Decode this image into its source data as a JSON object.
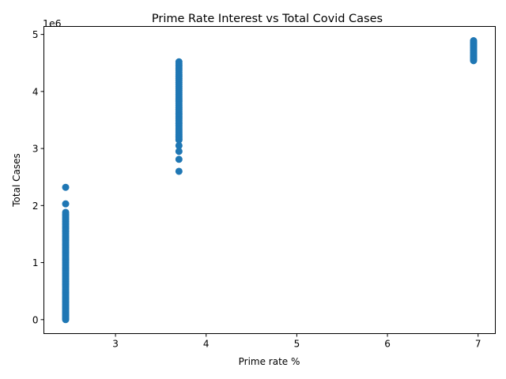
{
  "chart_data": {
    "type": "scatter",
    "title": "Prime Rate Interest vs Total Covid Cases",
    "xlabel": "Prime rate %",
    "ylabel": "Total Cases",
    "y_offset_label": "1e6",
    "xlim": [
      2.21,
      7.19
    ],
    "ylim": [
      -0.245,
      5.14
    ],
    "y_multiplier": 1000000,
    "x_ticks": [
      3,
      4,
      5,
      6,
      7
    ],
    "y_ticks": [
      0,
      1,
      2,
      3,
      4,
      5
    ],
    "grid": false,
    "legend": "none",
    "marker_color": "#1f77b4",
    "series": [
      {
        "groups": [
          {
            "x": 2.45,
            "y_min": 0.0,
            "y_max": 1.88,
            "count": 70,
            "extra_y": [
              2.03,
              2.32
            ]
          },
          {
            "x": 3.7,
            "y_min": 3.15,
            "y_max": 4.52,
            "count": 44,
            "extra_y": [
              2.6,
              2.81,
              2.95,
              3.05
            ]
          },
          {
            "x": 6.95,
            "y_min": 4.54,
            "y_max": 4.89,
            "count": 20,
            "extra_y": []
          }
        ]
      }
    ]
  }
}
